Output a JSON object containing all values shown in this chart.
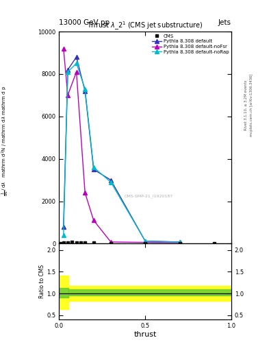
{
  "title_top_left": "13000 GeV pp",
  "title_top_right": "Jets",
  "main_title": "Thrust $\\lambda\\_2^1$ (CMS jet substructure)",
  "xlabel": "thrust",
  "right_label_1": "Rivet 3.1.10, ≥ 3.2M events",
  "right_label_2": "mcplots.cern.ch [arXiv:1306.3436]",
  "watermark": "CMS-SMP-21_I1920187",
  "cms_x": [
    0.005,
    0.025,
    0.05,
    0.075,
    0.1,
    0.125,
    0.15,
    0.2,
    0.3,
    0.5,
    0.7,
    0.9
  ],
  "cms_y": [
    30,
    50,
    60,
    65,
    60,
    55,
    50,
    40,
    30,
    20,
    10,
    5
  ],
  "pythia_default_x": [
    0.025,
    0.05,
    0.1,
    0.15,
    0.2,
    0.3,
    0.5,
    0.7
  ],
  "pythia_default_y": [
    800,
    8200,
    8800,
    7200,
    3500,
    3000,
    120,
    80
  ],
  "pythia_nofsr_x": [
    0.025,
    0.05,
    0.1,
    0.15,
    0.2,
    0.3,
    0.5,
    0.7
  ],
  "pythia_nofsr_y": [
    9200,
    7000,
    8100,
    2400,
    1100,
    80,
    60,
    50
  ],
  "pythia_norap_x": [
    0.025,
    0.05,
    0.1,
    0.15,
    0.2,
    0.3,
    0.5,
    0.7
  ],
  "pythia_norap_y": [
    400,
    8100,
    8500,
    7300,
    3600,
    2900,
    120,
    80
  ],
  "color_default": "#3333bb",
  "color_nofsr": "#bb00bb",
  "color_norap": "#00bbcc",
  "color_cms": "#111111",
  "ylim_main": [
    0,
    10000
  ],
  "ylim_ratio": [
    0.4,
    2.15
  ],
  "xlim": [
    0.0,
    1.0
  ],
  "legend_entries": [
    "CMS",
    "Pythia 8.308 default",
    "Pythia 8.308 default-noFsr",
    "Pythia 8.308 default-noRap"
  ],
  "yticks_main": [
    0,
    2000,
    4000,
    6000,
    8000,
    10000
  ],
  "xticks_ratio": [
    0.0,
    0.5,
    1.0
  ],
  "yticks_ratio": [
    0.5,
    1.0,
    1.5,
    2.0
  ]
}
